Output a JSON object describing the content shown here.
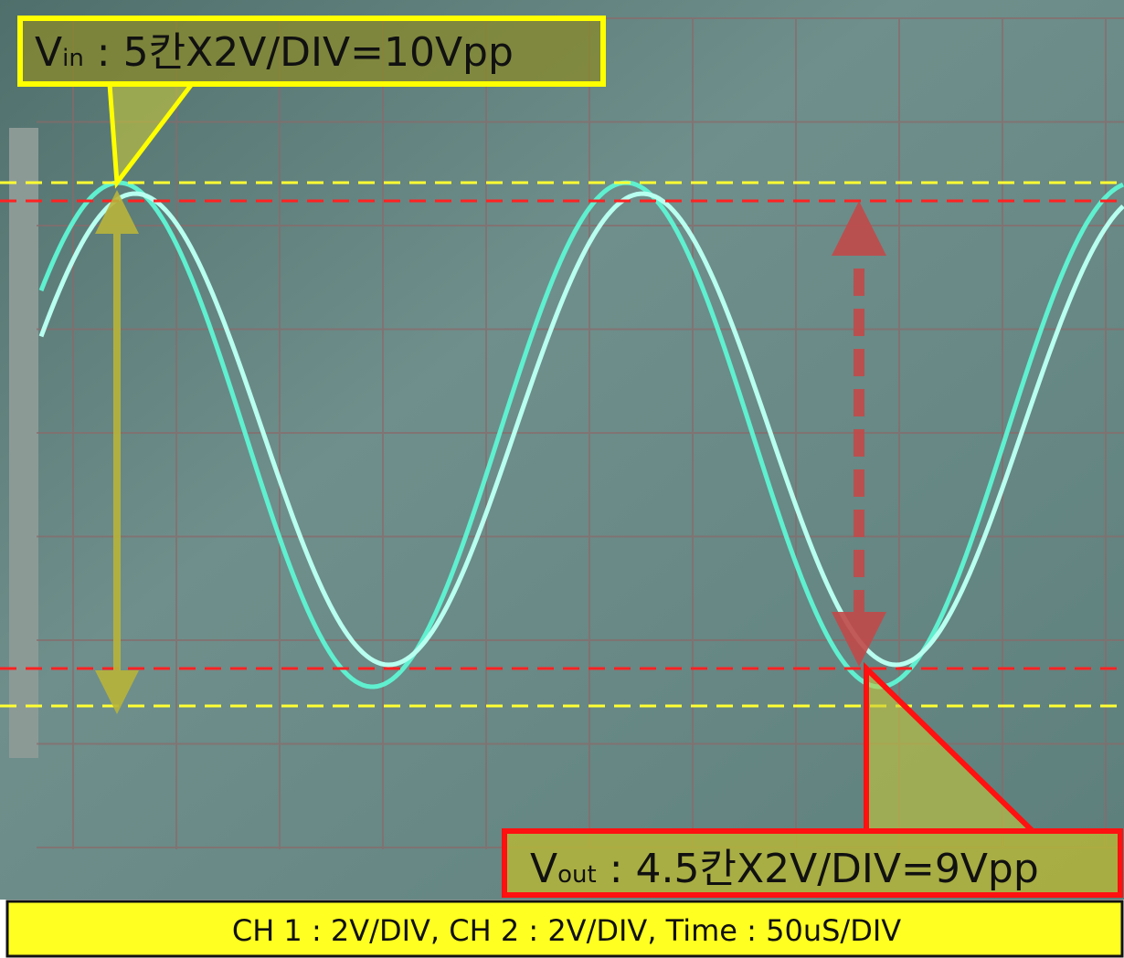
{
  "annotations": {
    "vin": {
      "symbol": "V",
      "subscript": "in",
      "text": " : 5칸X2V/DIV=10Vpp"
    },
    "vout": {
      "symbol": "V",
      "subscript": "out",
      "text": " : 4.5칸X2V/DIV=9Vpp"
    }
  },
  "footer": {
    "text": "CH 1 : 2V/DIV, CH 2 : 2V/DIV, Time : 50uS/DIV"
  }
}
